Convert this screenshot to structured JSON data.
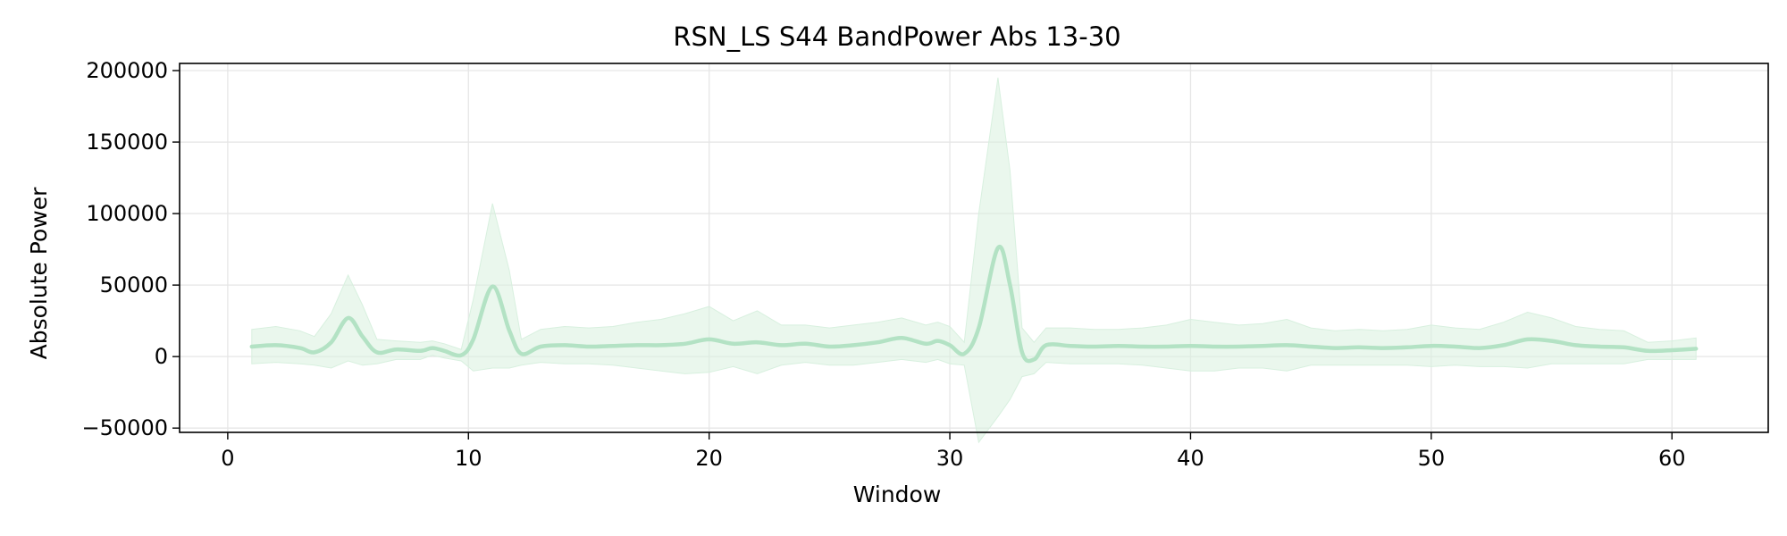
{
  "chart_data": {
    "type": "line",
    "title": "RSN_LS S44 BandPower Abs 13-30",
    "xlabel": "Window",
    "ylabel": "Absolute Power",
    "xlim": [
      -2,
      64
    ],
    "ylim": [
      -53000,
      205000
    ],
    "xticks": [
      0,
      10,
      20,
      30,
      40,
      50,
      60
    ],
    "yticks": [
      -50000,
      0,
      50000,
      100000,
      150000,
      200000
    ],
    "ytick_labels": [
      "−50000",
      "0",
      "50000",
      "100000",
      "150000",
      "200000"
    ],
    "grid": true,
    "colors": {
      "line": "#b3e2c4",
      "band": "#d8f0df",
      "grid": "#e6e6e6",
      "axis": "#000000"
    },
    "series": [
      {
        "x": [
          1,
          2,
          3,
          3.6,
          4.3,
          5,
          5.6,
          6.2,
          7,
          8,
          8.5,
          9,
          9.7,
          10.2,
          11,
          11.7,
          12.2,
          13,
          14,
          15,
          16,
          17,
          18,
          19,
          20,
          21,
          22,
          23,
          24,
          25,
          26,
          27,
          28,
          29,
          29.5,
          30,
          30.6,
          31.2,
          32,
          32.5,
          33,
          33.5,
          34,
          35,
          36,
          37,
          38,
          39,
          40,
          41,
          42,
          43,
          44,
          45,
          46,
          47,
          48,
          49,
          50,
          51,
          52,
          53,
          54,
          55,
          56,
          57,
          58,
          59,
          60,
          61
        ],
        "y": [
          7000,
          8000,
          6000,
          3000,
          10000,
          27000,
          14000,
          3000,
          5000,
          4000,
          6000,
          4000,
          1000,
          12000,
          49000,
          18000,
          2000,
          7000,
          8000,
          7000,
          7500,
          8000,
          8000,
          9000,
          12000,
          9000,
          10000,
          8000,
          9000,
          7000,
          8000,
          10000,
          13000,
          9000,
          11000,
          8000,
          2000,
          20000,
          76000,
          50000,
          3000,
          -2000,
          8000,
          7500,
          7000,
          7500,
          7000,
          7000,
          7500,
          7000,
          7000,
          7500,
          8000,
          7000,
          6000,
          6500,
          6000,
          6500,
          7500,
          7000,
          6000,
          8000,
          12000,
          11000,
          8000,
          7000,
          6500,
          4000,
          4500,
          5500
        ],
        "upper": [
          19000,
          21000,
          18000,
          14000,
          30000,
          57000,
          36000,
          12000,
          11000,
          10000,
          11000,
          9000,
          5000,
          40000,
          107000,
          60000,
          12000,
          19000,
          21000,
          20000,
          21000,
          24000,
          26000,
          30000,
          35000,
          25000,
          32000,
          22000,
          22000,
          20000,
          22000,
          24000,
          27000,
          22000,
          24000,
          21000,
          10000,
          100000,
          195000,
          130000,
          20000,
          10000,
          20000,
          20000,
          19000,
          19000,
          20000,
          22000,
          26000,
          24000,
          22000,
          23000,
          26000,
          20000,
          18000,
          19000,
          18000,
          19000,
          22000,
          20000,
          19000,
          24000,
          31000,
          27000,
          21000,
          19000,
          18000,
          10000,
          11000,
          13000
        ],
        "lower": [
          -5000,
          -4000,
          -5000,
          -6000,
          -8000,
          -3000,
          -6000,
          -5000,
          -2000,
          -2000,
          1000,
          -1000,
          -3000,
          -10000,
          -8000,
          -8000,
          -6000,
          -4000,
          -5000,
          -5000,
          -6000,
          -8000,
          -10000,
          -12000,
          -11000,
          -7000,
          -12000,
          -6000,
          -4000,
          -6000,
          -6000,
          -4000,
          -2000,
          -4000,
          -2000,
          -5000,
          -6000,
          -60000,
          -42000,
          -30000,
          -14000,
          -12000,
          -4000,
          -5000,
          -5000,
          -5000,
          -6000,
          -8000,
          -10000,
          -10000,
          -8000,
          -8000,
          -10000,
          -6000,
          -6000,
          -6000,
          -6000,
          -6000,
          -7000,
          -6000,
          -7000,
          -7000,
          -8000,
          -5000,
          -5000,
          -5000,
          -5000,
          -2000,
          -2000,
          -2000
        ]
      }
    ]
  }
}
